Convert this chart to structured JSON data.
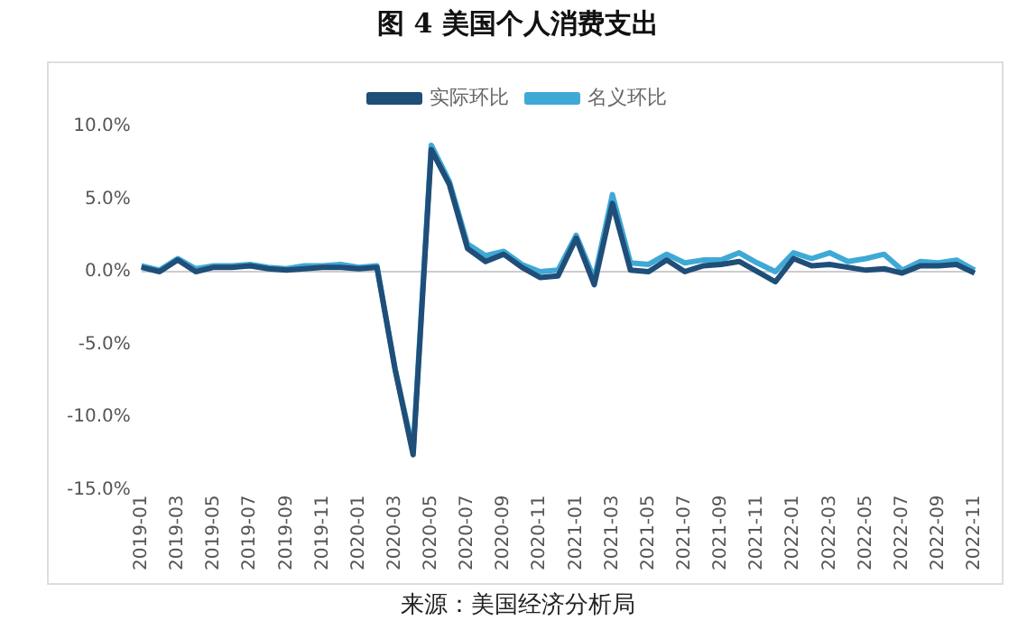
{
  "chart_data": {
    "type": "line",
    "title": "图 4 美国个人消费支出",
    "categories": [
      "2019-01",
      null,
      "2019-03",
      null,
      "2019-05",
      null,
      "2019-07",
      null,
      "2019-09",
      null,
      "2019-11",
      null,
      "2020-01",
      null,
      "2020-03",
      null,
      "2020-05",
      null,
      "2020-07",
      null,
      "2020-09",
      null,
      "2020-11",
      null,
      "2021-01",
      null,
      "2021-03",
      null,
      "2021-05",
      null,
      "2021-07",
      null,
      "2021-09",
      null,
      "2021-11",
      null,
      "2022-01",
      null,
      "2022-03",
      null,
      "2022-05",
      null,
      "2022-07",
      null,
      "2022-09",
      null,
      "2022-11"
    ],
    "series": [
      {
        "name": "实际环比",
        "color": "#1f4e79",
        "values": [
          0.3,
          0.0,
          0.8,
          0.0,
          0.3,
          0.3,
          0.4,
          0.2,
          0.1,
          0.2,
          0.3,
          0.3,
          0.2,
          0.3,
          -6.7,
          -12.6,
          8.4,
          6.0,
          1.6,
          0.7,
          1.2,
          0.3,
          -0.4,
          -0.3,
          2.3,
          -0.9,
          4.7,
          0.1,
          0.0,
          0.8,
          0.0,
          0.4,
          0.5,
          0.7,
          0.0,
          -0.7,
          0.9,
          0.4,
          0.5,
          0.3,
          0.1,
          0.2,
          -0.1,
          0.4,
          0.4,
          0.5,
          -0.1
        ]
      },
      {
        "name": "名义环比",
        "color": "#3fa9d6",
        "values": [
          0.4,
          0.1,
          0.9,
          0.2,
          0.4,
          0.4,
          0.5,
          0.3,
          0.2,
          0.4,
          0.4,
          0.5,
          0.3,
          0.4,
          -6.7,
          -12.3,
          8.7,
          6.2,
          1.9,
          1.1,
          1.4,
          0.5,
          0.0,
          0.1,
          2.5,
          -0.5,
          5.3,
          0.6,
          0.5,
          1.2,
          0.6,
          0.8,
          0.8,
          1.3,
          0.6,
          0.0,
          1.3,
          0.9,
          1.3,
          0.7,
          0.9,
          1.2,
          0.1,
          0.7,
          0.6,
          0.8,
          0.1
        ]
      }
    ],
    "ylim": [
      -15,
      10
    ],
    "ref_lines": [
      {
        "axis": "y",
        "value": 0,
        "color": "#cccccc"
      }
    ],
    "yticks": [
      {
        "value": -15,
        "label": "-15.0%"
      },
      {
        "value": -10,
        "label": "-10.0%"
      },
      {
        "value": -5,
        "label": "-5.0%"
      },
      {
        "value": 0,
        "label": "0.0%"
      },
      {
        "value": 5,
        "label": "5.0%"
      },
      {
        "value": 10,
        "label": "10.0%"
      }
    ],
    "grid": false,
    "legend": "top",
    "marker": "none",
    "line_style": "solid",
    "annotations": [
      "来源：美国经济分析局"
    ]
  }
}
